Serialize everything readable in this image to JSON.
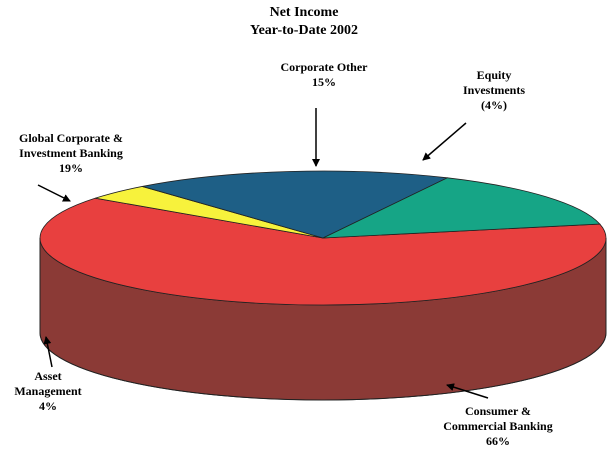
{
  "chart_data": {
    "type": "pie",
    "title": "Net Income",
    "subtitle": "Year-to-Date 2002",
    "slices": [
      {
        "key": "ccb",
        "label_lines": [
          "Consumer &",
          "Commercial Banking"
        ],
        "value_text": "66%",
        "value": 66,
        "color": "#e8403f",
        "side_color": "#8b3a36"
      },
      {
        "key": "am",
        "label_lines": [
          "Asset",
          "Management"
        ],
        "value_text": "4%",
        "value": 4,
        "color": "#f7f23c",
        "side_color": "#9b9a44"
      },
      {
        "key": "gcib",
        "label_lines": [
          "Global Corporate &",
          "Investment Banking"
        ],
        "value_text": "19%",
        "value": 19,
        "color": "#1e5f86",
        "side_color": "#163f5a"
      },
      {
        "key": "co",
        "label_lines": [
          "Corporate Other"
        ],
        "value_text": "15%",
        "value": 15,
        "color": "#16a586",
        "side_color": "#0f6f5a"
      },
      {
        "key": "eq",
        "label_lines": [
          "Equity",
          "Investments"
        ],
        "value_text": "(4%)",
        "value": -4,
        "color": null,
        "side_color": null
      }
    ]
  }
}
